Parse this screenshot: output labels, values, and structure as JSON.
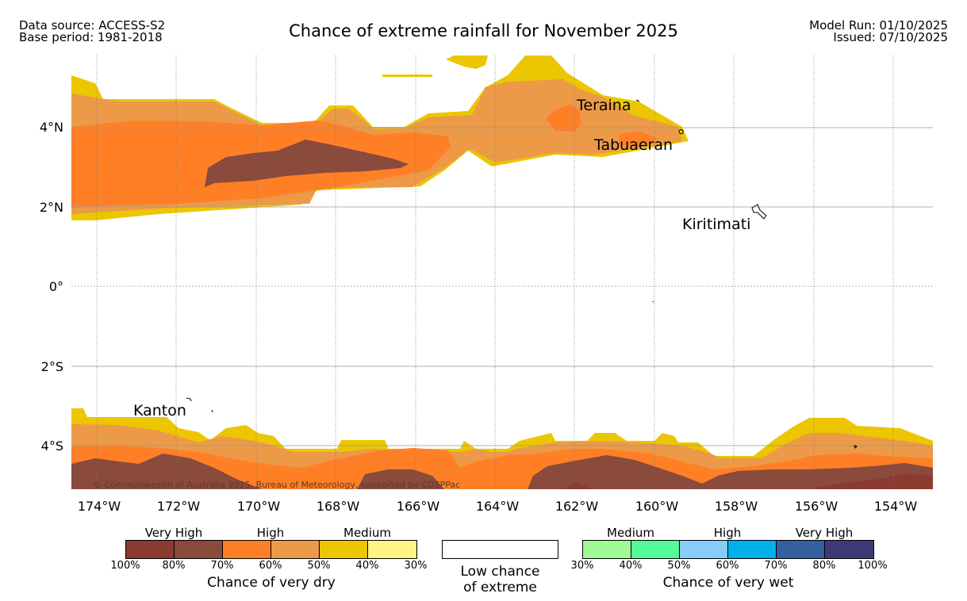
{
  "header": {
    "data_source": "Data source: ACCESS-S2",
    "base_period": "Base period: 1981-2018",
    "title": "Chance of extreme rainfall for November 2025",
    "model_run": "Model Run: 01/10/2025",
    "issued": "Issued: 07/10/2025"
  },
  "map": {
    "lon_ticks": [
      "174°W",
      "172°W",
      "170°W",
      "168°W",
      "166°W",
      "164°W",
      "162°W",
      "160°W",
      "158°W",
      "156°W",
      "154°W"
    ],
    "lat_ticks": [
      "4°N",
      "2°N",
      "0°",
      "2°S",
      "4°S"
    ],
    "places": {
      "teraina": "Teraina",
      "tabuaeran": "Tabuaeran",
      "kiritimati": "Kiritimati",
      "kanton": "Kanton"
    },
    "copyright": "© Commonwealth of Australia 2025, Bureau of Meteorology, supported by COSPPac",
    "colors": {
      "dry_100_80": "#8b3a30",
      "dry_80_70": "#8a4a3c",
      "dry_70_60": "#ff7f27",
      "dry_60_50": "#ec9a48",
      "dry_50_40": "#ecc600",
      "dry_40_30": "#fff582"
    }
  },
  "legend": {
    "dry": {
      "categories": [
        "Very High",
        "High",
        "Medium"
      ],
      "colors": [
        "#8b3a30",
        "#8a4a3c",
        "#ff7f27",
        "#ec9a48",
        "#ecc600",
        "#fff582"
      ],
      "ticks": [
        "100%",
        "80%",
        "70%",
        "60%",
        "50%",
        "40%",
        "30%"
      ],
      "caption": "Chance of very dry"
    },
    "low": {
      "line1": "Low chance",
      "line2": "of extreme"
    },
    "wet": {
      "categories": [
        "Medium",
        "High",
        "Very High"
      ],
      "colors": [
        "#a0fa96",
        "#55fa9b",
        "#87cdfa",
        "#00b0ec",
        "#3560a0",
        "#3e3a78"
      ],
      "ticks": [
        "30%",
        "40%",
        "50%",
        "60%",
        "70%",
        "80%",
        "100%"
      ],
      "caption": "Chance of very wet"
    }
  }
}
